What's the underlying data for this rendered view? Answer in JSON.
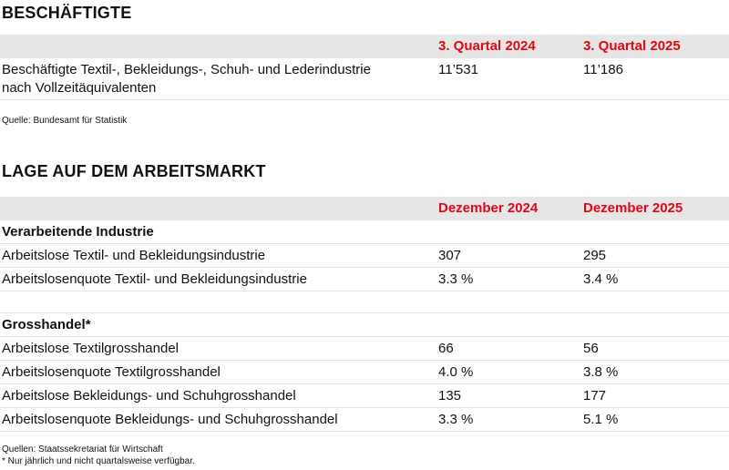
{
  "section1": {
    "title": "BESCHÄFTIGTE",
    "col1": "3. Quartal 2024",
    "col2": "3. Quartal 2025",
    "row": {
      "label_line1": "Beschäftigte Textil-, Bekleidungs-, Schuh- und Lederindustrie",
      "label_line2": "nach Vollzeitäquivalenten",
      "v1": "11’531",
      "v2": "11’186"
    },
    "source": "Quelle: Bundesamt für Statistik"
  },
  "section2": {
    "title": "LAGE AUF DEM ARBEITSMARKT",
    "col1": "Dezember 2024",
    "col2": "Dezember 2025",
    "group1": {
      "heading": "Verarbeitende Industrie",
      "rows": [
        {
          "label": "Arbeitslose Textil- und Bekleidungsindustrie",
          "v1": "307",
          "v2": "295"
        },
        {
          "label": "Arbeitslosenquote Textil- und Bekleidungsindustrie",
          "v1": "3.3 %",
          "v2": "3.4 %"
        }
      ]
    },
    "group2": {
      "heading": "Grosshandel*",
      "rows": [
        {
          "label": "Arbeitslose Textilgrosshandel",
          "v1": "66",
          "v2": "56"
        },
        {
          "label": "Arbeitslosenquote Textilgrosshandel",
          "v1": "4.0 %",
          "v2": "3.8 %"
        },
        {
          "label": "Arbeitslose Bekleidungs- und Schuhgrosshandel",
          "v1": "135",
          "v2": "177"
        },
        {
          "label": "Arbeitslosenquote Bekleidungs- und Schuhgrosshandel",
          "v1": "3.3 %",
          "v2": "5.1 %"
        }
      ]
    },
    "source": "Quellen: Staatssekretariat für Wirtschaft",
    "footnote": "* Nur jährlich und nicht quartalsweise verfügbar."
  }
}
